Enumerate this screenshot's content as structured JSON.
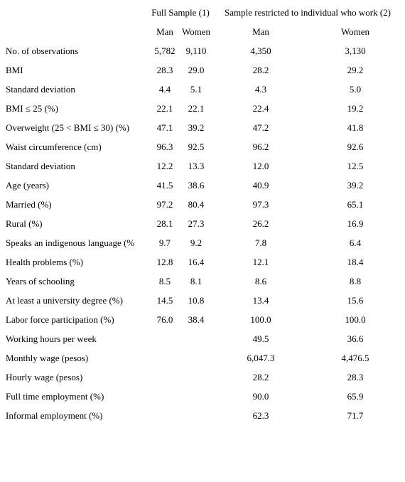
{
  "table": {
    "group_headers": [
      "Full Sample (1)",
      "Sample restricted to individual who work (2)"
    ],
    "sub_headers": [
      "Man",
      "Women",
      "Man",
      "Women"
    ],
    "rows": [
      [
        "No. of observations",
        "5,782",
        "9,110",
        "4,350",
        "3,130"
      ],
      [
        "BMI",
        "28.3",
        "29.0",
        "28.2",
        "29.2"
      ],
      [
        "Standard deviation",
        "4.4",
        "5.1",
        "4.3",
        "5.0"
      ],
      [
        "BMI ≤ 25 (%)",
        "22.1",
        "22.1",
        "22.4",
        "19.2"
      ],
      [
        "Overweight (25 < BMI ≤ 30) (%)",
        "47.1",
        "39.2",
        "47.2",
        "41.8"
      ],
      [
        "Waist circumference (cm)",
        "96.3",
        "92.5",
        "96.2",
        "92.6"
      ],
      [
        "Standard deviation",
        "12.2",
        "13.3",
        "12.0",
        "12.5"
      ],
      [
        "Age (years)",
        "41.5",
        "38.6",
        "40.9",
        "39.2"
      ],
      [
        "Married (%)",
        "97.2",
        "80.4",
        "97.3",
        "65.1"
      ],
      [
        "Rural (%)",
        "28.1",
        "27.3",
        "26.2",
        "16.9"
      ],
      [
        "Speaks an indigenous language (%",
        "9.7",
        "9.2",
        "7.8",
        "6.4"
      ],
      [
        "Health problems (%)",
        "12.8",
        "16.4",
        "12.1",
        "18.4"
      ],
      [
        "Years of schooling",
        "8.5",
        "8.1",
        "8.6",
        "8.8"
      ],
      [
        "At least a university degree (%)",
        "14.5",
        "10.8",
        "13.4",
        "15.6"
      ],
      [
        "Labor force participation (%)",
        "76.0",
        "38.4",
        "100.0",
        "100.0"
      ],
      [
        "Working hours per week",
        null,
        null,
        "49.5",
        "36.6"
      ],
      [
        "Monthly wage (pesos)",
        null,
        null,
        "6,047.3",
        "4,476.5"
      ],
      [
        "Hourly wage (pesos)",
        null,
        null,
        "28.2",
        "28.3"
      ],
      [
        "Full time employment (%)",
        null,
        null,
        "90.0",
        "65.9"
      ],
      [
        "Informal employment (%)",
        null,
        null,
        "62.3",
        "71.7"
      ]
    ]
  }
}
